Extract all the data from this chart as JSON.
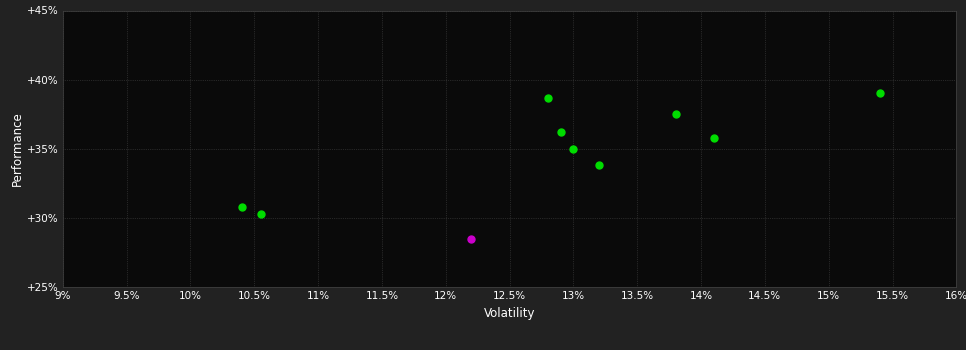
{
  "background_color": "#222222",
  "plot_background_color": "#0a0a0a",
  "grid_color": "#444444",
  "text_color": "#ffffff",
  "xlabel": "Volatility",
  "ylabel": "Performance",
  "xlim": [
    0.09,
    0.16
  ],
  "ylim": [
    0.25,
    0.45
  ],
  "xticks": [
    0.09,
    0.095,
    0.1,
    0.105,
    0.11,
    0.115,
    0.12,
    0.125,
    0.13,
    0.135,
    0.14,
    0.145,
    0.15,
    0.155,
    0.16
  ],
  "yticks": [
    0.25,
    0.3,
    0.35,
    0.4,
    0.45
  ],
  "xtick_labels": [
    "9%",
    "9.5%",
    "10%",
    "10.5%",
    "11%",
    "11.5%",
    "12%",
    "12.5%",
    "13%",
    "13.5%",
    "14%",
    "14.5%",
    "15%",
    "15.5%",
    "16%"
  ],
  "ytick_labels": [
    "+25%",
    "+30%",
    "+35%",
    "+40%",
    "+45%"
  ],
  "green_points": [
    [
      0.104,
      0.308
    ],
    [
      0.1055,
      0.303
    ],
    [
      0.128,
      0.387
    ],
    [
      0.129,
      0.362
    ],
    [
      0.13,
      0.35
    ],
    [
      0.132,
      0.338
    ],
    [
      0.138,
      0.375
    ],
    [
      0.141,
      0.358
    ],
    [
      0.154,
      0.39
    ]
  ],
  "magenta_points": [
    [
      0.122,
      0.285
    ]
  ],
  "point_size": 25,
  "green_color": "#00dd00",
  "magenta_color": "#cc00cc",
  "font_size_ticks": 7.5,
  "font_size_labels": 8.5
}
